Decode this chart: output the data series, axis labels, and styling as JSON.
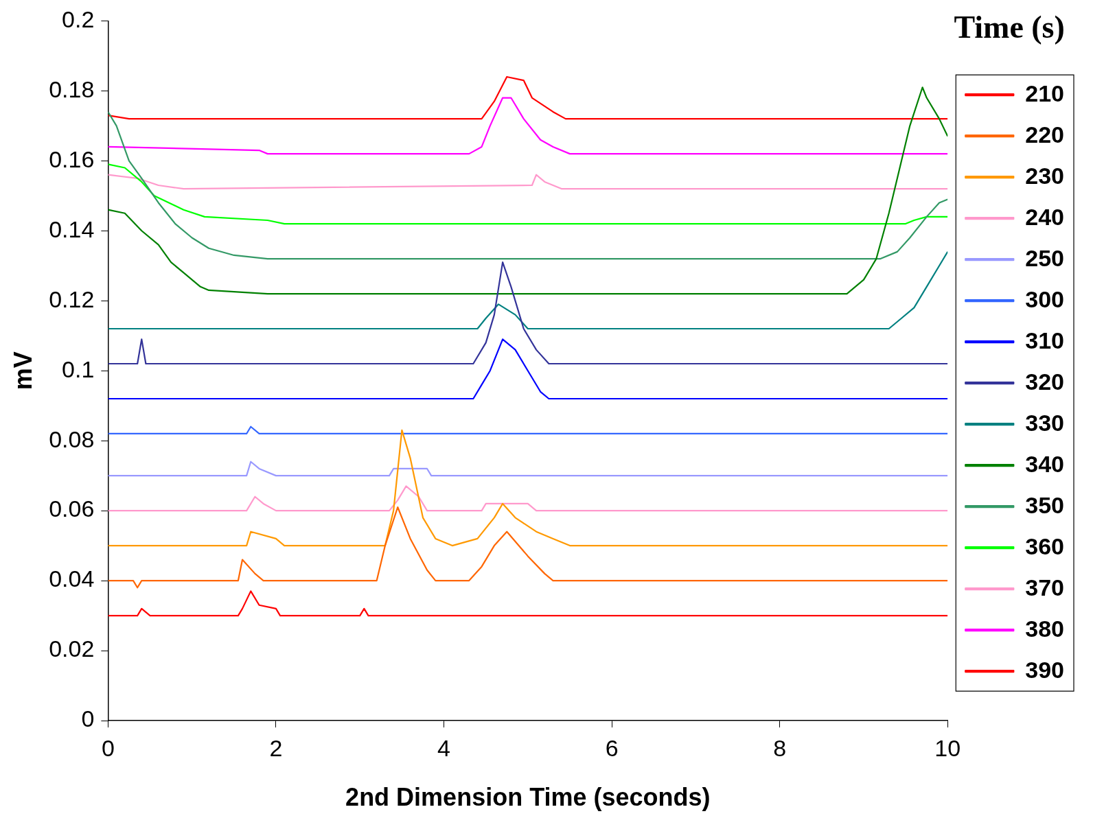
{
  "chart_data": {
    "type": "line",
    "xlabel": "2nd Dimension Time (seconds)",
    "ylabel": "mV",
    "legend_title": "Time (s)",
    "legend": "right",
    "grid": false,
    "marker": "none",
    "line_style": "solid",
    "xlim": [
      0,
      10
    ],
    "xticks": [
      0,
      2,
      4,
      6,
      8,
      10
    ],
    "ylim": [
      0,
      0.2
    ],
    "yticks": [
      0,
      0.02,
      0.04,
      0.06,
      0.08,
      0.1,
      0.12,
      0.14,
      0.16,
      0.18,
      0.2
    ],
    "series": [
      {
        "name": "210",
        "color": "#ff0000",
        "x": [
          0,
          0.35,
          0.4,
          0.5,
          1.55,
          1.6,
          1.7,
          1.8,
          2.0,
          2.05,
          3.0,
          3.05,
          3.1,
          10
        ],
        "values": [
          0.03,
          0.03,
          0.032,
          0.03,
          0.03,
          0.032,
          0.037,
          0.033,
          0.032,
          0.03,
          0.03,
          0.032,
          0.03,
          0.03
        ]
      },
      {
        "name": "220",
        "color": "#ff6600",
        "x": [
          0,
          0.3,
          0.35,
          0.4,
          1.55,
          1.6,
          1.75,
          1.85,
          3.2,
          3.3,
          3.45,
          3.6,
          3.8,
          3.9,
          4.3,
          4.45,
          4.6,
          4.75,
          5.0,
          5.2,
          5.3,
          10
        ],
        "values": [
          0.04,
          0.04,
          0.038,
          0.04,
          0.04,
          0.046,
          0.042,
          0.04,
          0.04,
          0.05,
          0.061,
          0.052,
          0.043,
          0.04,
          0.04,
          0.044,
          0.05,
          0.054,
          0.047,
          0.042,
          0.04,
          0.04
        ]
      },
      {
        "name": "230",
        "color": "#ff9900",
        "x": [
          0,
          1.65,
          1.7,
          2.0,
          2.1,
          3.3,
          3.4,
          3.5,
          3.6,
          3.75,
          3.9,
          4.1,
          4.4,
          4.6,
          4.7,
          4.85,
          5.1,
          5.3,
          5.5,
          10
        ],
        "values": [
          0.05,
          0.05,
          0.054,
          0.052,
          0.05,
          0.05,
          0.06,
          0.083,
          0.075,
          0.058,
          0.052,
          0.05,
          0.052,
          0.058,
          0.062,
          0.058,
          0.054,
          0.052,
          0.05,
          0.05
        ]
      },
      {
        "name": "240",
        "color": "#ff99cc",
        "x": [
          0,
          1.65,
          1.75,
          1.85,
          2.0,
          3.35,
          3.45,
          3.55,
          3.7,
          3.8,
          4.45,
          4.5,
          5.0,
          5.1,
          10
        ],
        "values": [
          0.06,
          0.06,
          0.064,
          0.062,
          0.06,
          0.06,
          0.063,
          0.067,
          0.064,
          0.06,
          0.06,
          0.062,
          0.062,
          0.06,
          0.06
        ]
      },
      {
        "name": "250",
        "color": "#9999ff",
        "x": [
          0,
          1.65,
          1.7,
          1.8,
          2.0,
          3.35,
          3.4,
          3.8,
          3.85,
          10
        ],
        "values": [
          0.07,
          0.07,
          0.074,
          0.072,
          0.07,
          0.07,
          0.072,
          0.072,
          0.07,
          0.07
        ]
      },
      {
        "name": "300",
        "color": "#3366ff",
        "x": [
          0,
          1.65,
          1.7,
          1.8,
          10
        ],
        "values": [
          0.082,
          0.082,
          0.084,
          0.082,
          0.082
        ]
      },
      {
        "name": "310",
        "color": "#0000ff",
        "x": [
          0,
          4.35,
          4.45,
          4.55,
          4.65,
          4.7,
          4.85,
          5.0,
          5.15,
          5.25,
          10
        ],
        "values": [
          0.092,
          0.092,
          0.096,
          0.1,
          0.106,
          0.109,
          0.106,
          0.1,
          0.094,
          0.092,
          0.092
        ]
      },
      {
        "name": "320",
        "color": "#333399",
        "x": [
          0,
          0.35,
          0.4,
          0.45,
          4.35,
          4.5,
          4.6,
          4.7,
          4.8,
          4.95,
          5.1,
          5.25,
          10
        ],
        "values": [
          0.102,
          0.102,
          0.109,
          0.102,
          0.102,
          0.108,
          0.116,
          0.131,
          0.124,
          0.112,
          0.106,
          0.102,
          0.102
        ]
      },
      {
        "name": "330",
        "color": "#008080",
        "x": [
          0,
          4.4,
          4.5,
          4.65,
          4.85,
          5.0,
          9.3,
          9.45,
          9.6,
          9.75,
          9.9,
          10
        ],
        "values": [
          0.112,
          0.112,
          0.115,
          0.119,
          0.116,
          0.112,
          0.112,
          0.115,
          0.118,
          0.124,
          0.13,
          0.134
        ]
      },
      {
        "name": "340",
        "color": "#008000",
        "x": [
          0,
          0.2,
          0.4,
          0.6,
          0.75,
          0.9,
          1.1,
          1.2,
          1.9,
          8.8,
          9.0,
          9.15,
          9.3,
          9.45,
          9.55,
          9.7,
          9.75,
          9.9,
          10
        ],
        "values": [
          0.146,
          0.145,
          0.14,
          0.136,
          0.131,
          0.128,
          0.124,
          0.123,
          0.122,
          0.122,
          0.126,
          0.132,
          0.145,
          0.16,
          0.17,
          0.181,
          0.178,
          0.172,
          0.167
        ]
      },
      {
        "name": "350",
        "color": "#339966",
        "x": [
          0,
          0.1,
          0.25,
          0.4,
          0.6,
          0.8,
          1.0,
          1.2,
          1.5,
          1.9,
          9.2,
          9.4,
          9.55,
          9.75,
          9.9,
          10
        ],
        "values": [
          0.174,
          0.17,
          0.16,
          0.155,
          0.148,
          0.142,
          0.138,
          0.135,
          0.133,
          0.132,
          0.132,
          0.134,
          0.138,
          0.144,
          0.148,
          0.149
        ]
      },
      {
        "name": "360",
        "color": "#00ff00",
        "x": [
          0,
          0.2,
          0.4,
          0.55,
          0.9,
          1.15,
          1.9,
          2.1,
          9.5,
          9.6,
          9.75,
          10
        ],
        "values": [
          0.159,
          0.158,
          0.154,
          0.15,
          0.146,
          0.144,
          0.143,
          0.142,
          0.142,
          0.143,
          0.144,
          0.144
        ]
      },
      {
        "name": "370",
        "color": "#ff99cc",
        "x": [
          0,
          0.35,
          0.6,
          0.9,
          5.05,
          5.1,
          5.2,
          5.4,
          10
        ],
        "values": [
          0.156,
          0.155,
          0.153,
          0.152,
          0.153,
          0.156,
          0.154,
          0.152,
          0.152
        ]
      },
      {
        "name": "380",
        "color": "#ff00ff",
        "x": [
          0,
          1.8,
          1.9,
          4.3,
          4.45,
          4.55,
          4.7,
          4.8,
          4.95,
          5.15,
          5.3,
          5.5,
          10
        ],
        "values": [
          0.164,
          0.163,
          0.162,
          0.162,
          0.164,
          0.17,
          0.178,
          0.178,
          0.172,
          0.166,
          0.164,
          0.162,
          0.162
        ]
      },
      {
        "name": "390",
        "color": "#ff0000",
        "x": [
          0,
          0.25,
          4.45,
          4.6,
          4.75,
          4.95,
          5.05,
          5.3,
          5.45,
          10
        ],
        "values": [
          0.173,
          0.172,
          0.172,
          0.177,
          0.184,
          0.183,
          0.178,
          0.174,
          0.172,
          0.172
        ]
      }
    ]
  }
}
